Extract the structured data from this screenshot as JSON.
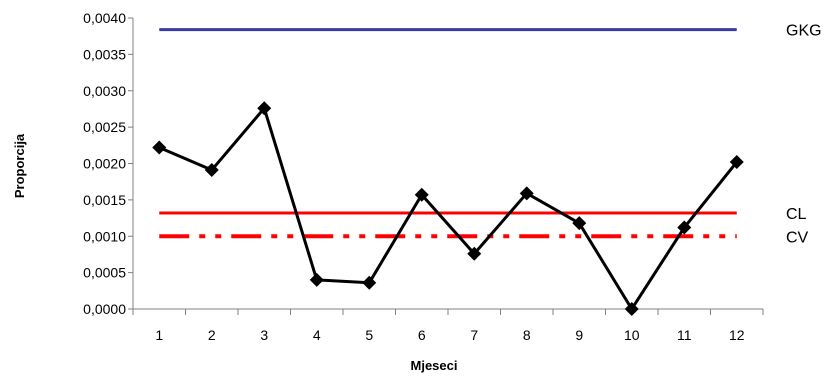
{
  "chart_data": {
    "type": "line",
    "title": "",
    "xlabel": "Mjeseci",
    "ylabel": "Proporcija",
    "categories": [
      "1",
      "2",
      "3",
      "4",
      "5",
      "6",
      "7",
      "8",
      "9",
      "10",
      "11",
      "12"
    ],
    "ylim": [
      0,
      0.004
    ],
    "yticks": [
      "0,0000",
      "0,0005",
      "0,0010",
      "0,0015",
      "0,0020",
      "0,0025",
      "0,0030",
      "0,0035",
      "0,0040"
    ],
    "grid": false,
    "series": [
      {
        "color": "#000000",
        "marker": "diamond",
        "values": [
          0.00222,
          0.00191,
          0.00276,
          0.0004,
          0.00036,
          0.00157,
          0.00076,
          0.00159,
          0.00118,
          0.0,
          0.00112,
          0.00202
        ]
      }
    ],
    "reference_lines": [
      {
        "name": "GKG",
        "value": 0.00384,
        "color": "#3b3ba3",
        "style": "solid"
      },
      {
        "name": "CL",
        "value": 0.00132,
        "color": "#ff0000",
        "style": "solid"
      },
      {
        "name": "CV",
        "value": 0.001,
        "color": "#ff0000",
        "style": "dashed"
      }
    ]
  }
}
